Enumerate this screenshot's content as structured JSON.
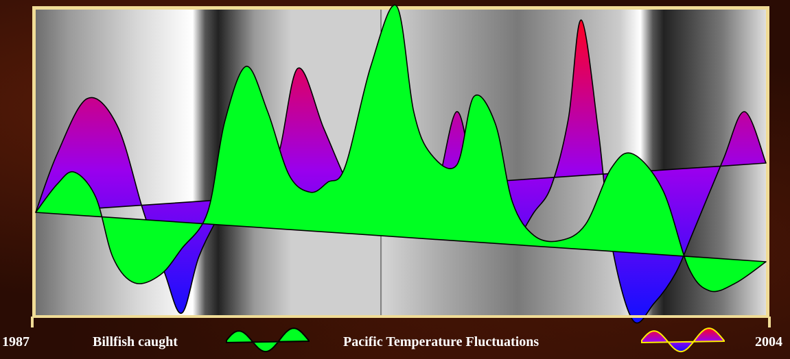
{
  "chart_data": {
    "type": "area",
    "x_start_label": "1987",
    "x_end_label": "2004",
    "xlim": [
      1987,
      2004
    ],
    "ylim": [
      -1,
      1
    ],
    "grid": false,
    "legend_placement": "bottom",
    "series": [
      {
        "name": "Pacific Temperature Fluctuations",
        "role": "temperature",
        "gradient_colors": [
          "#ff0022",
          "#9900ee",
          "#1010ff"
        ],
        "baseline": [
          [
            1987,
            0.0
          ],
          [
            2004,
            0.49
          ]
        ],
        "values": [
          [
            1987.0,
            0.0
          ],
          [
            1987.5,
            0.58
          ],
          [
            1988.2,
            1.13
          ],
          [
            1988.9,
            0.86
          ],
          [
            1989.5,
            0.02
          ],
          [
            1990.0,
            -0.6
          ],
          [
            1990.4,
            -1.0
          ],
          [
            1990.8,
            -0.44
          ],
          [
            1991.3,
            0.0
          ],
          [
            1992.0,
            0.58
          ],
          [
            1992.6,
            0.52
          ],
          [
            1993.1,
            1.43
          ],
          [
            1993.7,
            0.84
          ],
          [
            1994.2,
            0.34
          ],
          [
            1994.5,
            0.1
          ],
          [
            1994.8,
            0.0
          ],
          [
            1995.8,
            0.18
          ],
          [
            1996.3,
            0.2
          ],
          [
            1996.8,
            1.0
          ],
          [
            1997.2,
            0.31
          ],
          [
            1997.6,
            -0.18
          ],
          [
            1998.1,
            -0.3
          ],
          [
            1998.6,
            0.0
          ],
          [
            1999.0,
            0.26
          ],
          [
            1999.4,
            0.93
          ],
          [
            1999.7,
            1.91
          ],
          [
            2000.1,
            0.8
          ],
          [
            2000.4,
            -0.3
          ],
          [
            2000.9,
            -1.07
          ],
          [
            2001.4,
            -0.9
          ],
          [
            2001.9,
            -0.6
          ],
          [
            2002.3,
            -0.2
          ],
          [
            2003.0,
            0.52
          ],
          [
            2003.5,
            1.0
          ],
          [
            2004.0,
            0.49
          ]
        ]
      },
      {
        "name": "Billfish caught",
        "role": "billfish",
        "color": "#00ff22",
        "baseline": [
          [
            1987,
            0.0
          ],
          [
            2004,
            -0.49
          ]
        ],
        "values": [
          [
            1987.0,
            0.0
          ],
          [
            1987.5,
            0.28
          ],
          [
            1987.9,
            0.4
          ],
          [
            1988.4,
            0.15
          ],
          [
            1988.8,
            -0.45
          ],
          [
            1989.3,
            -0.7
          ],
          [
            1989.9,
            -0.62
          ],
          [
            1990.4,
            -0.36
          ],
          [
            1991.0,
            0.0
          ],
          [
            1991.4,
            0.9
          ],
          [
            1991.9,
            1.45
          ],
          [
            1992.4,
            1.0
          ],
          [
            1992.9,
            0.37
          ],
          [
            1993.4,
            0.2
          ],
          [
            1993.8,
            0.3
          ],
          [
            1994.2,
            0.45
          ],
          [
            1994.8,
            1.45
          ],
          [
            1995.4,
            2.05
          ],
          [
            1995.8,
            1.0
          ],
          [
            1996.2,
            0.58
          ],
          [
            1996.8,
            0.47
          ],
          [
            1997.2,
            1.15
          ],
          [
            1997.7,
            0.88
          ],
          [
            1998.1,
            0.1
          ],
          [
            1998.6,
            -0.23
          ],
          [
            1999.2,
            -0.28
          ],
          [
            1999.8,
            -0.12
          ],
          [
            2000.4,
            0.44
          ],
          [
            2000.9,
            0.58
          ],
          [
            2001.6,
            0.22
          ],
          [
            2002.2,
            -0.55
          ],
          [
            2002.7,
            -0.78
          ],
          [
            2003.3,
            -0.7
          ],
          [
            2004.0,
            -0.49
          ]
        ]
      }
    ]
  }
}
